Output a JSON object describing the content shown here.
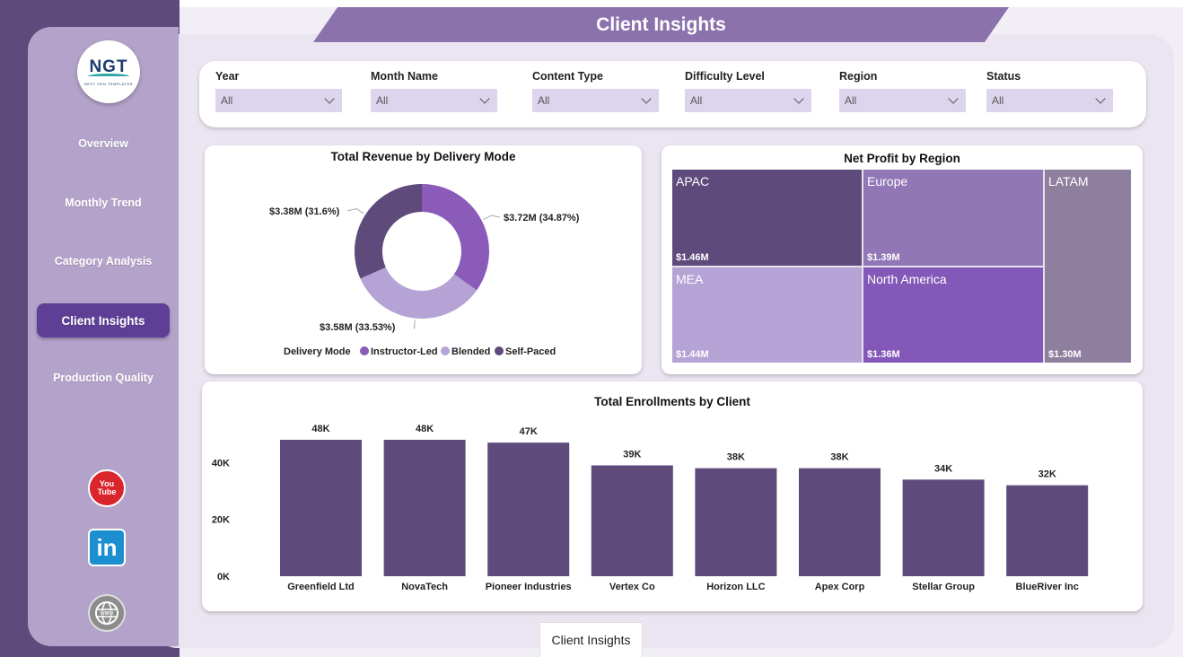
{
  "header": {
    "title": "Client Insights"
  },
  "logo": {
    "mark": "NGT",
    "tagline": "NEXT GEN TEMPLATES"
  },
  "sidebar": {
    "items": [
      {
        "label": "Overview",
        "active": false
      },
      {
        "label": "Monthly Trend",
        "active": false
      },
      {
        "label": "Category Analysis",
        "active": false
      },
      {
        "label": "Client Insights",
        "active": true
      },
      {
        "label": "Production Quality",
        "active": false
      }
    ],
    "social": {
      "youtube_top": "You",
      "youtube_bottom": "Tube",
      "linkedin": "in"
    }
  },
  "filters": [
    {
      "label": "Year",
      "value": "All"
    },
    {
      "label": "Month Name",
      "value": "All"
    },
    {
      "label": "Content Type",
      "value": "All"
    },
    {
      "label": "Difficulty Level",
      "value": "All"
    },
    {
      "label": "Region",
      "value": "All"
    },
    {
      "label": "Status",
      "value": "All"
    }
  ],
  "page_tab": "Client Insights",
  "colors": {
    "instructor_led": "#8a5bb8",
    "blended": "#b5a3d6",
    "self_paced": "#5e4a7b",
    "bar": "#5e4a7b",
    "active_nav": "#5e3f96"
  },
  "chart_data": [
    {
      "type": "pie",
      "title": "Total Revenue by Delivery Mode",
      "legend_title": "Delivery Mode",
      "legend_position": "bottom",
      "slices": [
        {
          "name": "Instructor-Led",
          "value": 3.72,
          "label": "$3.72M (34.87%)",
          "color": "#8a5bb8"
        },
        {
          "name": "Blended",
          "value": 3.58,
          "label": "$3.58M (33.53%)",
          "color": "#b5a3d6"
        },
        {
          "name": "Self-Paced",
          "value": 3.38,
          "label": "$3.38M (31.6%)",
          "color": "#5e4a7b"
        }
      ]
    },
    {
      "type": "treemap",
      "title": "Net Profit by Region",
      "items": [
        {
          "name": "APAC",
          "value": 1.46,
          "label": "$1.46M",
          "color": "#5e4a7b"
        },
        {
          "name": "Europe",
          "value": 1.39,
          "label": "$1.39M",
          "color": "#9177b6"
        },
        {
          "name": "LATAM",
          "value": 1.3,
          "label": "$1.30M",
          "color": "#8e7f9e"
        },
        {
          "name": "MEA",
          "value": 1.44,
          "label": "$1.44M",
          "color": "#b5a3d6"
        },
        {
          "name": "North America",
          "value": 1.36,
          "label": "$1.36M",
          "color": "#8358b8"
        }
      ]
    },
    {
      "type": "bar",
      "title": "Total Enrollments by Client",
      "categories": [
        "Greenfield Ltd",
        "NovaTech",
        "Pioneer Industries",
        "Vertex Co",
        "Horizon LLC",
        "Apex Corp",
        "Stellar Group",
        "BlueRiver Inc"
      ],
      "values": [
        48,
        48,
        47,
        39,
        38,
        38,
        34,
        32
      ],
      "value_labels": [
        "48K",
        "48K",
        "47K",
        "39K",
        "38K",
        "38K",
        "34K",
        "32K"
      ],
      "yticks": [
        "40K",
        "20K",
        "0K"
      ],
      "ytick_values": [
        40,
        20,
        0
      ],
      "ylim": [
        0,
        48
      ],
      "unit": "K",
      "grid": false
    }
  ]
}
